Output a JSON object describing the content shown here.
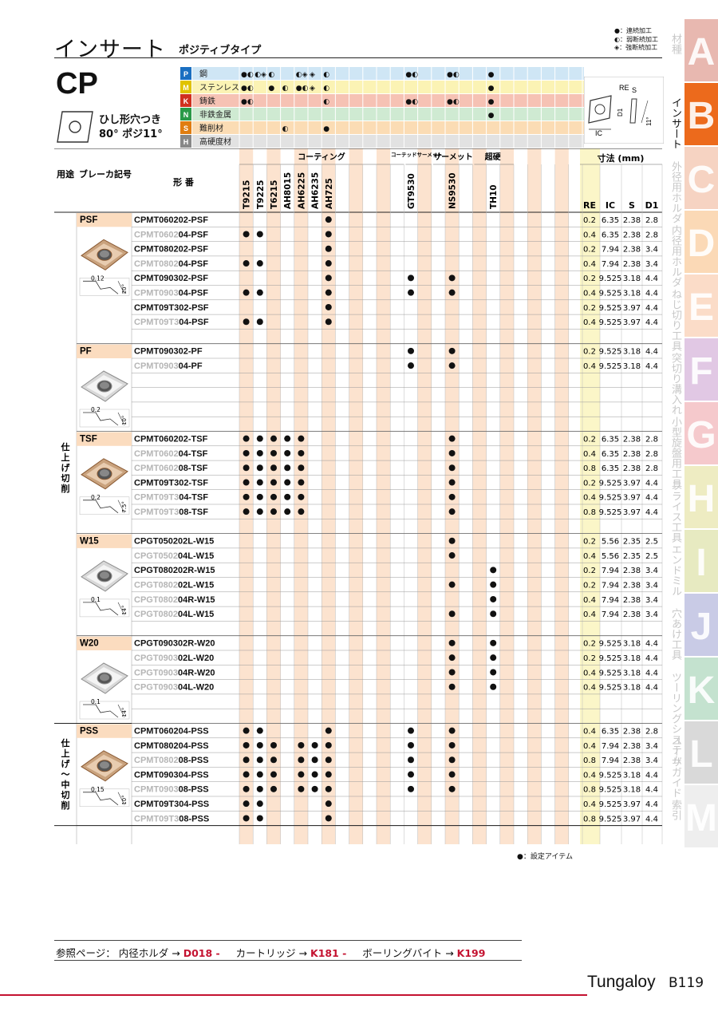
{
  "header": {
    "title": "インサート",
    "subtitle": "ポジティブタイプ",
    "legend": [
      "●：連続加工",
      "◐：弱断続加工",
      "◈：強断続加工"
    ]
  },
  "product": {
    "code": "CP",
    "desc_line1": "ひし形穴つき",
    "desc_line2": "80° ポジ11°"
  },
  "material_rows": [
    {
      "code": "P",
      "label": "鋼",
      "color": "#cfe6f5",
      "codecolor": "#1a6fc1"
    },
    {
      "code": "M",
      "label": "ステンレス",
      "color": "#fbf3b4",
      "codecolor": "#e0c300"
    },
    {
      "code": "K",
      "label": "鋳鉄",
      "color": "#f6c2b4",
      "codecolor": "#d0301f"
    },
    {
      "code": "N",
      "label": "非鉄金属",
      "color": "#cfead2",
      "codecolor": "#2a9a48"
    },
    {
      "code": "S",
      "label": "難削材",
      "color": "#fbdcb4",
      "codecolor": "#e07d10"
    },
    {
      "code": "H",
      "label": "高硬度材",
      "color": "#e2e2e2",
      "codecolor": "#888888"
    }
  ],
  "spec_labels": {
    "re": "RE",
    "s": "S",
    "d1": "D1",
    "ic": "IC",
    "angle": "11°"
  },
  "table_headers": {
    "usage": "用途",
    "breaker": "ブレーカ記号",
    "type": "形 番",
    "coating": "コーティング",
    "coated_cermet": "コーテッドサーメット",
    "cermet": "サーメット",
    "carbide": "超硬",
    "dims": "寸法 (mm)",
    "dim_cols": [
      "RE",
      "IC",
      "S",
      "D1"
    ]
  },
  "grades": [
    "T9215",
    "T9225",
    "T6215",
    "AH8015",
    "AH6225",
    "AH6235",
    "AH725",
    "GT9530",
    "NS9530",
    "TH10"
  ],
  "usage": [
    {
      "label": "仕上げ切削"
    },
    {
      "label": "仕上げ〜中切削"
    }
  ],
  "groups": [
    {
      "breaker": "PSF",
      "rows": [
        {
          "p": "CPMT060202-PSF",
          "s": "",
          "d": [
            7
          ],
          "re": "0.2",
          "ic": "6.35",
          "sv": "2.38",
          "d1": "2.8"
        },
        {
          "p": "CPMT0602",
          "s": "04-PSF",
          "d": [
            1,
            2,
            7
          ],
          "re": "0.4",
          "ic": "6.35",
          "sv": "2.38",
          "d1": "2.8"
        },
        {
          "p": "CPMT080202-PSF",
          "s": "",
          "d": [
            7
          ],
          "re": "0.2",
          "ic": "7.94",
          "sv": "2.38",
          "d1": "3.4"
        },
        {
          "p": "CPMT0802",
          "s": "04-PSF",
          "d": [
            1,
            2,
            7
          ],
          "re": "0.4",
          "ic": "7.94",
          "sv": "2.38",
          "d1": "3.4"
        },
        {
          "p": "CPMT090302-PSF",
          "s": "",
          "d": [
            7,
            8,
            9
          ],
          "re": "0.2",
          "ic": "9.525",
          "sv": "3.18",
          "d1": "4.4"
        },
        {
          "p": "CPMT0903",
          "s": "04-PSF",
          "d": [
            1,
            2,
            7,
            8,
            9
          ],
          "re": "0.4",
          "ic": "9.525",
          "sv": "3.18",
          "d1": "4.4"
        },
        {
          "p": "CPMT09T302-PSF",
          "s": "",
          "d": [
            7
          ],
          "re": "0.2",
          "ic": "9.525",
          "sv": "3.97",
          "d1": "4.4"
        },
        {
          "p": "CPMT09T3",
          "s": "04-PSF",
          "d": [
            1,
            2,
            7
          ],
          "re": "0.4",
          "ic": "9.525",
          "sv": "3.97",
          "d1": "4.4"
        }
      ],
      "blank": 1,
      "img": "bronze",
      "dim": "0.12",
      "ang": "20°"
    },
    {
      "breaker": "PF",
      "rows": [
        {
          "p": "CPMT090302-PF",
          "s": "",
          "d": [
            8,
            9
          ],
          "re": "0.2",
          "ic": "9.525",
          "sv": "3.18",
          "d1": "4.4"
        },
        {
          "p": "CPMT0903",
          "s": "04-PF",
          "d": [
            8,
            9
          ],
          "re": "0.4",
          "ic": "9.525",
          "sv": "3.18",
          "d1": "4.4"
        }
      ],
      "blank": 4,
      "img": "silver",
      "dim": "0.2",
      "ang": "10°"
    },
    {
      "breaker": "TSF",
      "rows": [
        {
          "p": "CPMT060202-TSF",
          "s": "",
          "d": [
            1,
            2,
            3,
            4,
            5,
            9
          ],
          "re": "0.2",
          "ic": "6.35",
          "sv": "2.38",
          "d1": "2.8"
        },
        {
          "p": "CPMT0602",
          "s": "04-TSF",
          "d": [
            1,
            2,
            3,
            4,
            5,
            9
          ],
          "re": "0.4",
          "ic": "6.35",
          "sv": "2.38",
          "d1": "2.8"
        },
        {
          "p": "CPMT0602",
          "s": "08-TSF",
          "d": [
            1,
            2,
            3,
            4,
            5,
            9
          ],
          "re": "0.8",
          "ic": "6.35",
          "sv": "2.38",
          "d1": "2.8"
        },
        {
          "p": "CPMT09T302-TSF",
          "s": "",
          "d": [
            1,
            2,
            3,
            4,
            5,
            9
          ],
          "re": "0.2",
          "ic": "9.525",
          "sv": "3.97",
          "d1": "4.4"
        },
        {
          "p": "CPMT09T3",
          "s": "04-TSF",
          "d": [
            1,
            2,
            3,
            4,
            5,
            9
          ],
          "re": "0.4",
          "ic": "9.525",
          "sv": "3.97",
          "d1": "4.4"
        },
        {
          "p": "CPMT09T3",
          "s": "08-TSF",
          "d": [
            1,
            2,
            3,
            4,
            5,
            9
          ],
          "re": "0.8",
          "ic": "9.525",
          "sv": "3.97",
          "d1": "4.4"
        }
      ],
      "blank": 1,
      "img": "bronze",
      "dim": "0.2",
      "ang": "7.5°"
    },
    {
      "breaker": "W15",
      "rows": [
        {
          "p": "CPGT050202L-W15",
          "s": "",
          "d": [
            9
          ],
          "re": "0.2",
          "ic": "5.56",
          "sv": "2.35",
          "d1": "2.5"
        },
        {
          "p": "CPGT0502",
          "s": "04L-W15",
          "d": [
            9
          ],
          "re": "0.4",
          "ic": "5.56",
          "sv": "2.35",
          "d1": "2.5"
        },
        {
          "p": "CPGT080202R-W15",
          "s": "",
          "d": [
            10
          ],
          "re": "0.2",
          "ic": "7.94",
          "sv": "2.38",
          "d1": "3.4"
        },
        {
          "p": "CPGT0802",
          "s": "02L-W15",
          "d": [
            9,
            10
          ],
          "re": "0.2",
          "ic": "7.94",
          "sv": "2.38",
          "d1": "3.4"
        },
        {
          "p": "CPGT0802",
          "s": "04R-W15",
          "d": [
            10
          ],
          "re": "0.4",
          "ic": "7.94",
          "sv": "2.38",
          "d1": "3.4"
        },
        {
          "p": "CPGT0802",
          "s": "04L-W15",
          "d": [
            9,
            10
          ],
          "re": "0.4",
          "ic": "7.94",
          "sv": "2.38",
          "d1": "3.4"
        }
      ],
      "blank": 1,
      "img": "silver",
      "dim": "0.1",
      "ang": "14°"
    },
    {
      "breaker": "W20",
      "rows": [
        {
          "p": "CPGT090302R-W20",
          "s": "",
          "d": [
            9,
            10
          ],
          "re": "0.2",
          "ic": "9.525",
          "sv": "3.18",
          "d1": "4.4"
        },
        {
          "p": "CPGT0903",
          "s": "02L-W20",
          "d": [
            9,
            10
          ],
          "re": "0.2",
          "ic": "9.525",
          "sv": "3.18",
          "d1": "4.4"
        },
        {
          "p": "CPGT0903",
          "s": "04R-W20",
          "d": [
            9,
            10
          ],
          "re": "0.4",
          "ic": "9.525",
          "sv": "3.18",
          "d1": "4.4"
        },
        {
          "p": "CPGT0903",
          "s": "04L-W20",
          "d": [
            9,
            10
          ],
          "re": "0.4",
          "ic": "9.525",
          "sv": "3.18",
          "d1": "4.4"
        }
      ],
      "blank": 2,
      "img": "silver",
      "dim": "0.1",
      "ang": "14°"
    },
    {
      "breaker": "PSS",
      "rows": [
        {
          "p": "CPMT060204-PSS",
          "s": "",
          "d": [
            1,
            2,
            7,
            8,
            9
          ],
          "re": "0.4",
          "ic": "6.35",
          "sv": "2.38",
          "d1": "2.8"
        },
        {
          "p": "CPMT080204-PSS",
          "s": "",
          "d": [
            1,
            2,
            3,
            5,
            6,
            7,
            8,
            9
          ],
          "re": "0.4",
          "ic": "7.94",
          "sv": "2.38",
          "d1": "3.4"
        },
        {
          "p": "CPMT0802",
          "s": "08-PSS",
          "d": [
            1,
            2,
            3,
            5,
            6,
            7,
            8,
            9
          ],
          "re": "0.8",
          "ic": "7.94",
          "sv": "2.38",
          "d1": "3.4"
        },
        {
          "p": "CPMT090304-PSS",
          "s": "",
          "d": [
            1,
            2,
            3,
            5,
            6,
            7,
            8,
            9
          ],
          "re": "0.4",
          "ic": "9.525",
          "sv": "3.18",
          "d1": "4.4"
        },
        {
          "p": "CPMT0903",
          "s": "08-PSS",
          "d": [
            1,
            2,
            3,
            5,
            6,
            7,
            8,
            9
          ],
          "re": "0.8",
          "ic": "9.525",
          "sv": "3.18",
          "d1": "4.4"
        },
        {
          "p": "CPMT09T304-PSS",
          "s": "",
          "d": [
            1,
            2,
            7
          ],
          "re": "0.4",
          "ic": "9.525",
          "sv": "3.97",
          "d1": "4.4"
        },
        {
          "p": "CPMT09T3",
          "s": "08-PSS",
          "d": [
            1,
            2,
            7
          ],
          "re": "0.8",
          "ic": "9.525",
          "sv": "3.97",
          "d1": "4.4"
        }
      ],
      "blank": 0,
      "img": "bronze",
      "dim": "0.15",
      "ang": "10°"
    }
  ],
  "footnote": "●：設定アイテム",
  "reference": {
    "prefix": "参照ページ：",
    "items": [
      {
        "label": "内径ホルダ →",
        "page": "D018 -"
      },
      {
        "label": "カートリッジ →",
        "page": "K181 -"
      },
      {
        "label": "ボーリングバイト →",
        "page": "K199"
      }
    ]
  },
  "brand": "Tungaloy",
  "page_number": "B119",
  "side_tabs": [
    {
      "letter": "A",
      "label": "材種",
      "color": "#e8b8b0"
    },
    {
      "letter": "B",
      "label": "インサート",
      "color": "#ec6a1c"
    },
    {
      "letter": "C",
      "label": "外径用ホルダ",
      "color": "#f6d3c2"
    },
    {
      "letter": "D",
      "label": "内径用ホルダ",
      "color": "#fbd9b6"
    },
    {
      "letter": "E",
      "label": "ねじ切り工具",
      "color": "#fbdcc8"
    },
    {
      "letter": "F",
      "label": "突切り溝入れ",
      "color": "#e1c8e4"
    },
    {
      "letter": "G",
      "label": "小型旋盤用工具",
      "color": "#f5c9cc"
    },
    {
      "letter": "H",
      "label": "フライス工具",
      "color": "#eeecc2"
    },
    {
      "letter": "I",
      "label": "エンドミル",
      "color": "#e7eac1"
    },
    {
      "letter": "J",
      "label": "穴あけ工具",
      "color": "#c9cbe6"
    },
    {
      "letter": "K",
      "label": "ツーリングシステム",
      "color": "#c4e2cf"
    },
    {
      "letter": "L",
      "label": "ユーザガイド",
      "color": "#d9d9d9"
    },
    {
      "letter": "M",
      "label": "索引",
      "color": "#eeeeee"
    }
  ]
}
